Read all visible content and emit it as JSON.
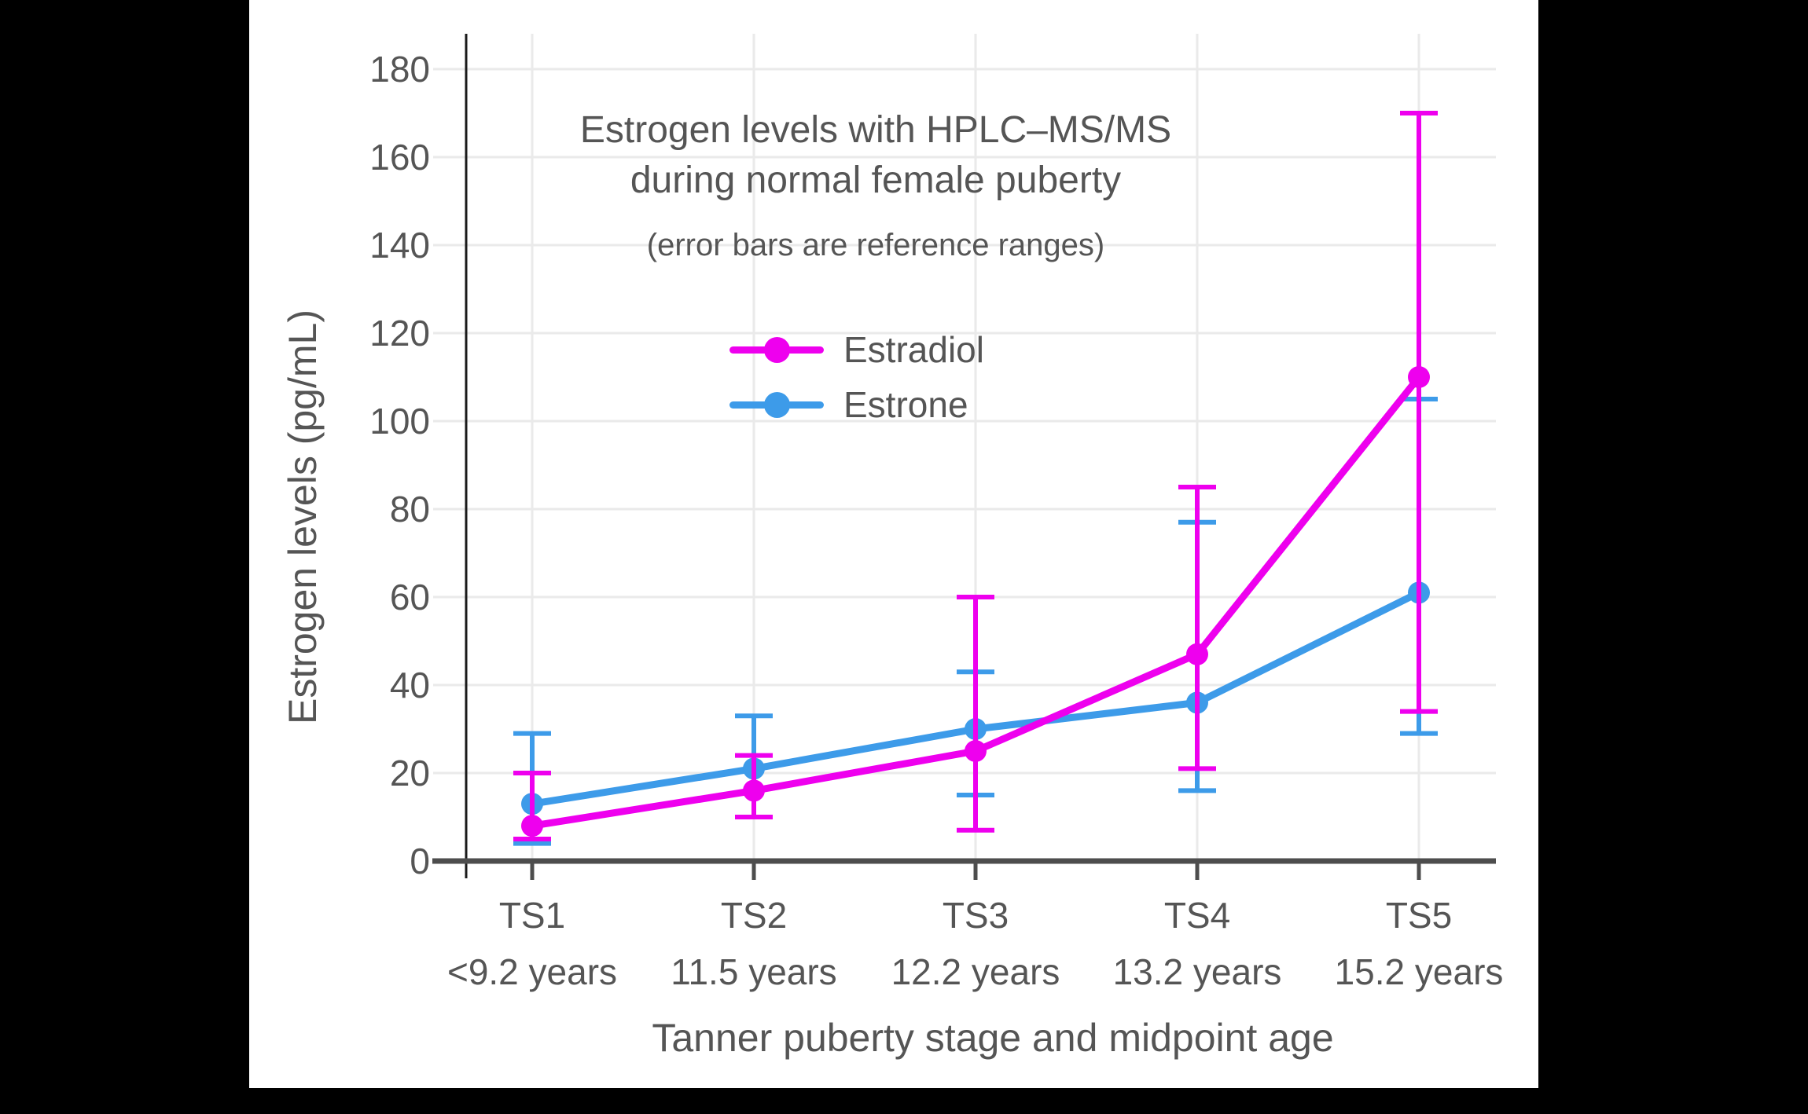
{
  "page": {
    "background_color": "#000000",
    "panel_color": "#ffffff",
    "text_color": "#555555",
    "grid_color": "#eaeaea",
    "y_axis_color": "#1a1a1a",
    "x_axis_color": "#4d4d4d"
  },
  "title": {
    "line1": "Estrogen levels with HPLC–MS/MS",
    "line2": "during normal female puberty",
    "subtitle": "(error bars are reference ranges)"
  },
  "legend": {
    "items": [
      {
        "label": "Estradiol",
        "color": "#ee00ee"
      },
      {
        "label": "Estrone",
        "color": "#3d9be9"
      }
    ]
  },
  "axes": {
    "y_label": "Estrogen levels (pg/mL)",
    "x_label": "Tanner puberty stage and midpoint age"
  },
  "chart_data": {
    "type": "line",
    "title": "Estrogen levels with HPLC–MS/MS during normal female puberty",
    "subtitle": "(error bars are reference ranges)",
    "xlabel": "Tanner puberty stage and midpoint age",
    "ylabel": "Estrogen levels (pg/mL)",
    "categories": [
      "TS1",
      "TS2",
      "TS3",
      "TS4",
      "TS5"
    ],
    "category_sublabels": [
      "<9.2 years",
      "11.5 years",
      "12.2 years",
      "13.2 years",
      "15.2 years"
    ],
    "ylim": [
      0,
      180
    ],
    "ytick_step": 20,
    "yticks": [
      0,
      20,
      40,
      60,
      80,
      100,
      120,
      140,
      160,
      180
    ],
    "grid": true,
    "legend_position": "upper-center-inside",
    "error_bar_meaning": "reference ranges",
    "series": [
      {
        "name": "Estradiol",
        "color": "#ee00ee",
        "values": [
          8,
          16,
          25,
          47,
          110
        ],
        "range_low": [
          5,
          10,
          7,
          21,
          34
        ],
        "range_high": [
          20,
          24,
          60,
          85,
          170
        ]
      },
      {
        "name": "Estrone",
        "color": "#3d9be9",
        "values": [
          13,
          21,
          30,
          36,
          61
        ],
        "range_low": [
          4,
          10,
          15,
          16,
          29
        ],
        "range_high": [
          29,
          33,
          43,
          77,
          105
        ]
      }
    ]
  }
}
